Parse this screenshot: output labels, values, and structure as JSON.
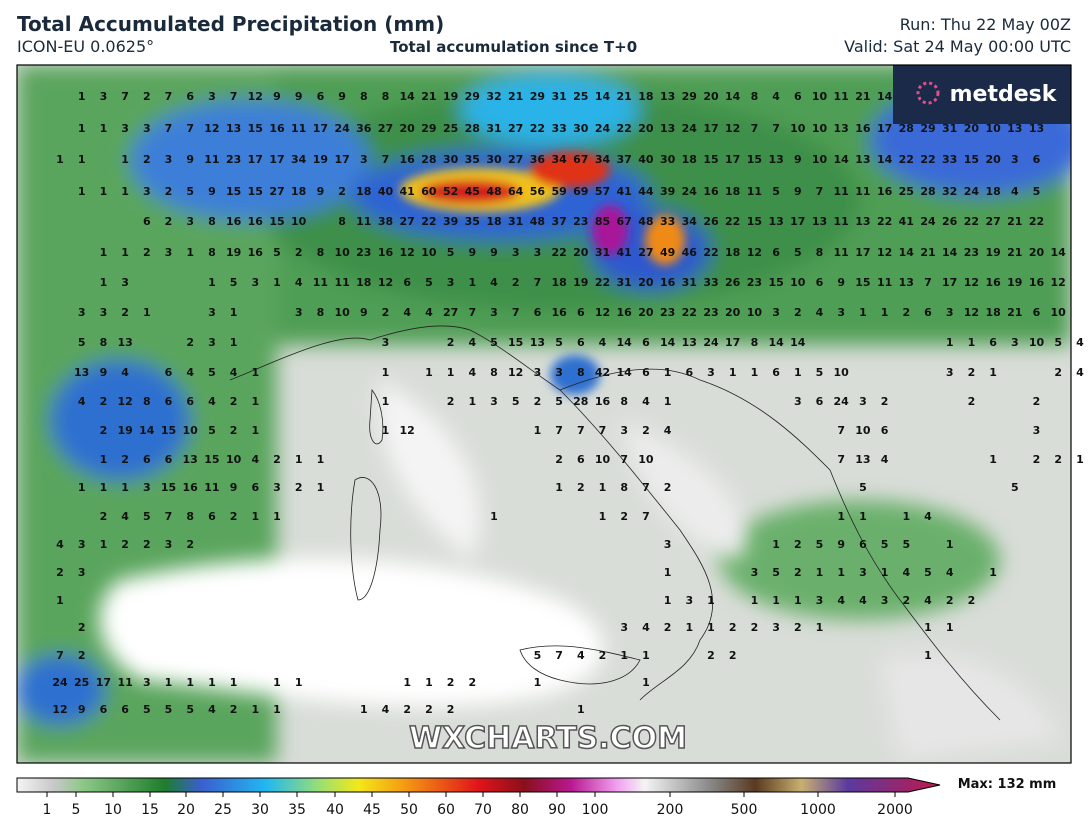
{
  "header": {
    "title": "Total Accumulated Precipitation (mm)",
    "model": "ICON-EU 0.0625°",
    "subtitle": "Total accumulation since T+0",
    "run": "Run: Thu 22 May 00Z",
    "valid": "Valid: Sat 24 May 00:00 UTC"
  },
  "logo": "metdesk",
  "watermark": "WXCHARTS.COM",
  "map_values": [
    [
      null,
      1,
      3,
      7,
      2,
      7,
      6,
      3,
      7,
      12,
      9,
      9,
      6,
      9,
      8,
      8,
      14,
      21,
      19,
      29,
      32,
      21,
      29,
      31,
      25,
      14,
      21,
      18,
      13,
      29,
      20,
      14,
      8,
      4,
      6,
      10,
      11,
      21,
      14
    ],
    [
      null,
      1,
      1,
      3,
      3,
      7,
      7,
      12,
      13,
      15,
      16,
      11,
      17,
      24,
      36,
      27,
      20,
      29,
      25,
      28,
      31,
      27,
      22,
      33,
      30,
      24,
      22,
      20,
      13,
      24,
      17,
      12,
      7,
      7,
      10,
      10,
      13,
      16,
      17,
      28,
      29,
      31,
      20,
      10,
      13,
      13
    ],
    [
      1,
      1,
      null,
      1,
      2,
      3,
      9,
      11,
      23,
      17,
      17,
      34,
      19,
      17,
      3,
      7,
      16,
      28,
      30,
      35,
      30,
      27,
      36,
      34,
      67,
      34,
      37,
      40,
      30,
      18,
      15,
      17,
      15,
      13,
      9,
      10,
      14,
      13,
      14,
      22,
      22,
      33,
      15,
      20,
      3,
      6
    ],
    [
      null,
      1,
      1,
      1,
      3,
      2,
      5,
      9,
      15,
      15,
      27,
      18,
      9,
      2,
      18,
      40,
      41,
      60,
      52,
      45,
      48,
      64,
      56,
      59,
      69,
      57,
      41,
      44,
      39,
      24,
      16,
      18,
      11,
      5,
      9,
      7,
      11,
      11,
      16,
      25,
      28,
      32,
      24,
      18,
      4,
      5
    ],
    [
      null,
      null,
      null,
      null,
      6,
      2,
      3,
      8,
      16,
      16,
      15,
      10,
      null,
      8,
      11,
      38,
      27,
      22,
      39,
      35,
      18,
      31,
      48,
      37,
      23,
      85,
      67,
      48,
      33,
      34,
      26,
      22,
      15,
      13,
      17,
      13,
      11,
      13,
      22,
      41,
      24,
      26,
      22,
      27,
      21,
      22
    ],
    [
      null,
      null,
      1,
      1,
      2,
      3,
      1,
      8,
      19,
      16,
      5,
      2,
      8,
      10,
      23,
      16,
      12,
      10,
      5,
      9,
      9,
      3,
      3,
      22,
      20,
      31,
      41,
      27,
      49,
      46,
      22,
      18,
      12,
      6,
      5,
      8,
      11,
      17,
      12,
      14,
      21,
      14,
      23,
      19,
      21,
      20,
      14
    ],
    [
      null,
      null,
      1,
      3,
      null,
      null,
      null,
      1,
      5,
      3,
      1,
      4,
      11,
      11,
      18,
      12,
      6,
      5,
      3,
      1,
      4,
      2,
      7,
      18,
      19,
      22,
      31,
      20,
      16,
      31,
      33,
      26,
      23,
      15,
      10,
      6,
      9,
      15,
      11,
      13,
      7,
      17,
      12,
      16,
      19,
      16,
      12
    ],
    [
      null,
      3,
      3,
      2,
      1,
      null,
      null,
      3,
      1,
      null,
      null,
      3,
      8,
      10,
      9,
      2,
      4,
      4,
      27,
      7,
      3,
      7,
      6,
      16,
      6,
      12,
      16,
      20,
      23,
      22,
      23,
      20,
      10,
      3,
      2,
      4,
      3,
      1,
      1,
      2,
      6,
      3,
      12,
      18,
      21,
      6,
      10
    ],
    [
      null,
      5,
      8,
      13,
      null,
      null,
      2,
      3,
      1,
      null,
      null,
      null,
      null,
      null,
      null,
      3,
      null,
      null,
      2,
      4,
      5,
      15,
      13,
      5,
      6,
      4,
      14,
      6,
      14,
      13,
      24,
      17,
      8,
      14,
      14,
      null,
      null,
      null,
      null,
      null,
      null,
      1,
      1,
      6,
      3,
      10,
      5,
      4
    ],
    [
      null,
      13,
      9,
      4,
      null,
      6,
      4,
      5,
      4,
      1,
      null,
      null,
      null,
      null,
      null,
      1,
      null,
      1,
      1,
      4,
      8,
      12,
      3,
      3,
      8,
      42,
      14,
      6,
      1,
      6,
      3,
      1,
      1,
      6,
      1,
      5,
      10,
      null,
      null,
      null,
      null,
      3,
      2,
      1,
      null,
      null,
      2,
      4,
      8
    ],
    [
      null,
      4,
      2,
      12,
      8,
      6,
      6,
      4,
      2,
      1,
      null,
      null,
      null,
      null,
      null,
      1,
      null,
      null,
      2,
      1,
      3,
      5,
      2,
      5,
      28,
      16,
      8,
      4,
      1,
      null,
      null,
      null,
      null,
      null,
      3,
      6,
      24,
      3,
      2,
      null,
      null,
      null,
      2,
      null,
      null,
      2
    ],
    [
      null,
      null,
      2,
      19,
      14,
      15,
      10,
      5,
      2,
      1,
      null,
      null,
      null,
      null,
      null,
      1,
      12,
      null,
      null,
      null,
      null,
      null,
      1,
      7,
      7,
      7,
      3,
      2,
      4,
      null,
      null,
      null,
      null,
      null,
      null,
      null,
      7,
      10,
      6,
      null,
      null,
      null,
      null,
      null,
      null,
      3
    ],
    [
      null,
      null,
      1,
      2,
      6,
      6,
      13,
      15,
      10,
      4,
      2,
      1,
      1,
      null,
      null,
      null,
      null,
      null,
      null,
      null,
      null,
      null,
      null,
      2,
      6,
      10,
      7,
      10,
      null,
      null,
      null,
      null,
      null,
      null,
      null,
      null,
      7,
      13,
      4,
      null,
      null,
      null,
      null,
      1,
      null,
      2,
      2,
      1
    ],
    [
      null,
      1,
      1,
      1,
      3,
      15,
      16,
      11,
      9,
      6,
      3,
      2,
      1,
      null,
      null,
      null,
      null,
      null,
      null,
      null,
      null,
      null,
      null,
      1,
      2,
      1,
      8,
      7,
      2,
      null,
      null,
      null,
      null,
      null,
      null,
      null,
      null,
      5,
      null,
      null,
      null,
      null,
      null,
      null,
      5
    ],
    [
      null,
      null,
      2,
      4,
      5,
      7,
      8,
      6,
      2,
      1,
      1,
      null,
      null,
      null,
      null,
      null,
      null,
      null,
      null,
      null,
      1,
      null,
      null,
      null,
      null,
      1,
      2,
      7,
      null,
      null,
      null,
      null,
      null,
      null,
      null,
      null,
      1,
      1,
      null,
      1,
      4
    ],
    [
      4,
      3,
      1,
      2,
      2,
      3,
      2,
      null,
      null,
      null,
      null,
      null,
      null,
      null,
      null,
      null,
      null,
      null,
      null,
      null,
      null,
      null,
      null,
      null,
      null,
      null,
      null,
      null,
      3,
      null,
      null,
      null,
      null,
      1,
      2,
      5,
      9,
      6,
      5,
      5,
      null,
      1
    ],
    [
      2,
      3,
      null,
      null,
      null,
      null,
      null,
      null,
      null,
      null,
      null,
      null,
      null,
      null,
      null,
      null,
      null,
      null,
      null,
      null,
      null,
      null,
      null,
      null,
      null,
      null,
      null,
      null,
      1,
      null,
      null,
      null,
      3,
      5,
      2,
      1,
      1,
      3,
      1,
      4,
      5,
      4,
      null,
      1
    ],
    [
      1,
      null,
      null,
      null,
      null,
      null,
      null,
      null,
      null,
      null,
      null,
      null,
      null,
      null,
      null,
      null,
      null,
      null,
      null,
      null,
      null,
      null,
      null,
      null,
      null,
      null,
      null,
      null,
      1,
      3,
      1,
      null,
      1,
      1,
      1,
      3,
      4,
      4,
      3,
      2,
      4,
      2,
      2
    ],
    [
      null,
      2,
      null,
      null,
      null,
      null,
      null,
      null,
      null,
      null,
      null,
      null,
      null,
      null,
      null,
      null,
      null,
      null,
      null,
      null,
      null,
      null,
      null,
      null,
      null,
      null,
      3,
      4,
      2,
      1,
      1,
      2,
      2,
      3,
      2,
      1,
      null,
      null,
      null,
      null,
      1,
      1
    ],
    [
      7,
      2,
      null,
      null,
      null,
      null,
      null,
      null,
      null,
      null,
      null,
      null,
      null,
      null,
      null,
      null,
      null,
      null,
      null,
      null,
      null,
      null,
      5,
      7,
      4,
      2,
      1,
      1,
      null,
      null,
      2,
      2,
      null,
      null,
      null,
      null,
      null,
      null,
      null,
      null,
      1
    ],
    [
      24,
      25,
      17,
      11,
      3,
      1,
      1,
      1,
      1,
      null,
      1,
      1,
      null,
      null,
      null,
      null,
      1,
      1,
      2,
      2,
      null,
      null,
      1,
      null,
      null,
      null,
      null,
      1
    ],
    [
      12,
      9,
      6,
      6,
      5,
      5,
      5,
      4,
      2,
      1,
      1,
      null,
      null,
      null,
      1,
      4,
      2,
      2,
      2,
      null,
      null,
      null,
      null,
      null,
      1
    ]
  ],
  "colorbar": {
    "ticks": [
      1,
      5,
      10,
      15,
      20,
      25,
      30,
      35,
      40,
      45,
      50,
      60,
      70,
      80,
      90,
      100,
      200,
      500,
      1000,
      2000
    ],
    "max_label": "Max: 132 mm"
  }
}
